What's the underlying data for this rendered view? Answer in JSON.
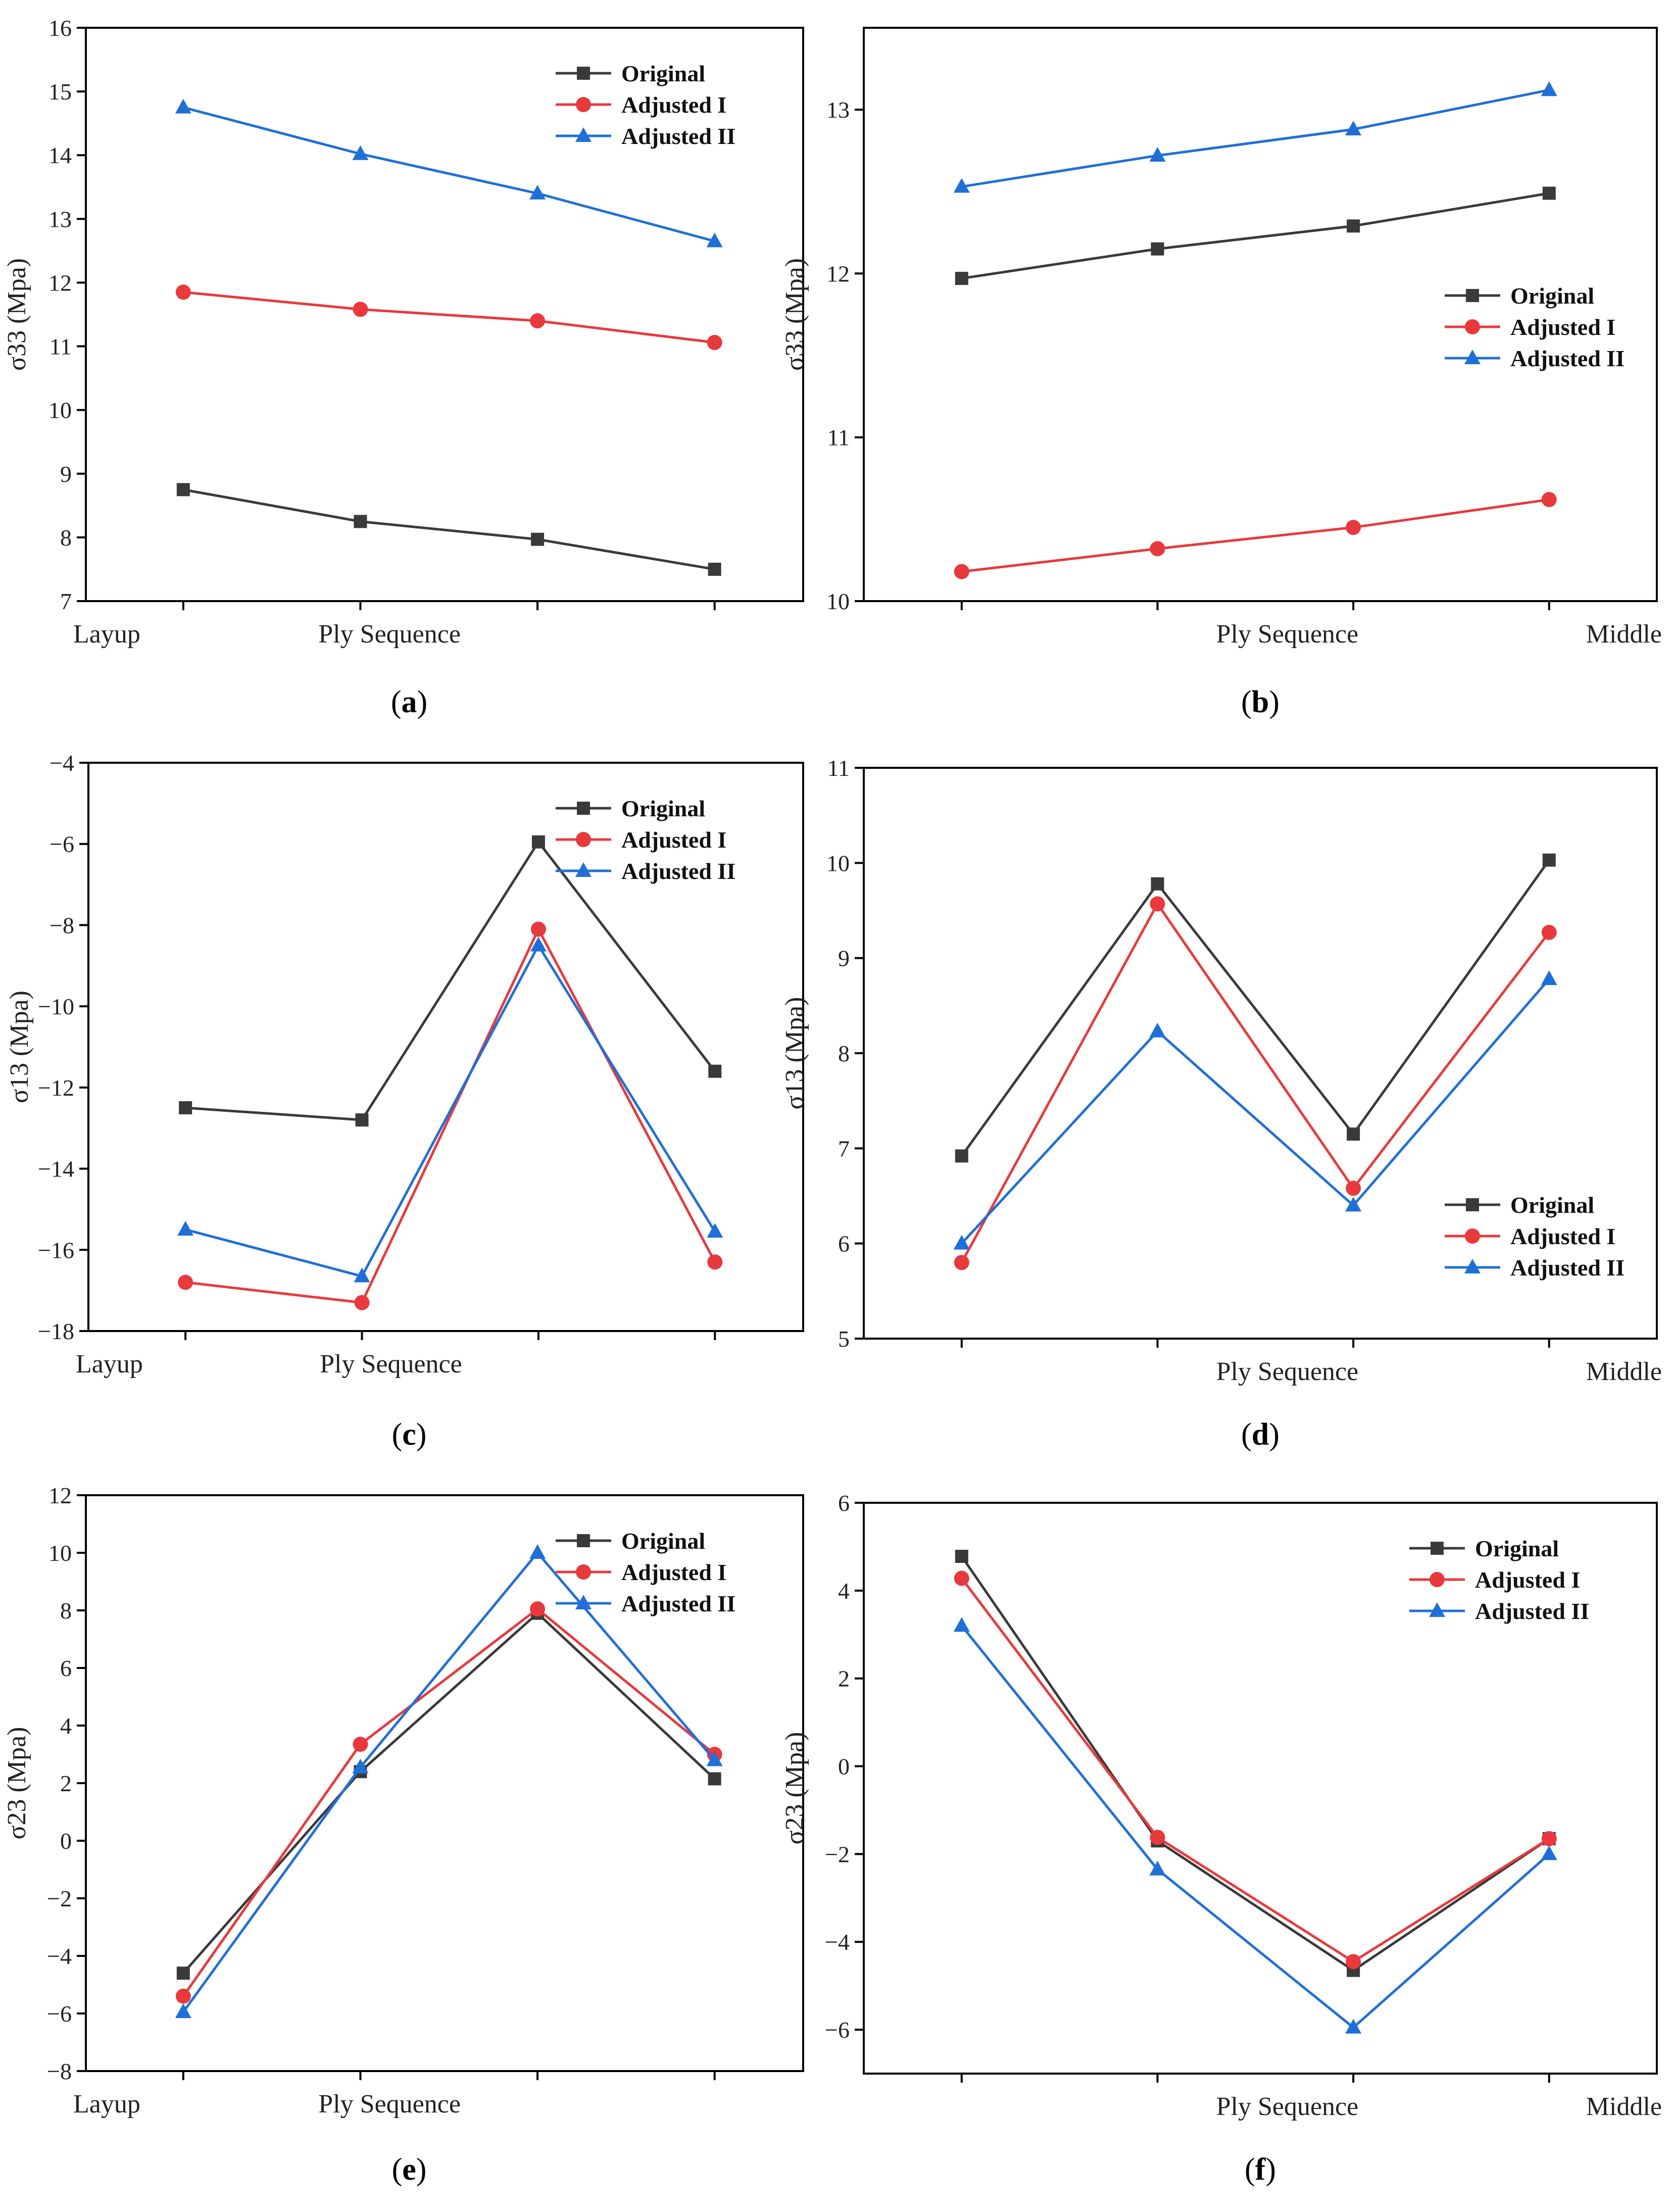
{
  "figure": {
    "colors": {
      "Original": "#3a3a3a",
      "Adjusted I": "#e8393c",
      "Adjusted II": "#1f6fd8"
    },
    "markers": {
      "Original": "square",
      "Adjusted I": "circle",
      "Adjusted II": "triangle"
    }
  },
  "chart_data": [
    {
      "id": "a",
      "type": "line",
      "caption_letter": "a",
      "title": "",
      "ylabel": "σ33 (Mpa)",
      "xlabel": "Ply Sequence",
      "x_left_label": "Layup",
      "x_right_label": "",
      "x": [
        1,
        2,
        3,
        4
      ],
      "xlim": [
        0.45,
        4.5
      ],
      "ylim": [
        7,
        16
      ],
      "yticks": [
        7,
        8,
        9,
        10,
        11,
        12,
        13,
        14,
        15,
        16
      ],
      "ytick_labels": [
        "7",
        "8",
        "9",
        "10",
        "11",
        "12",
        "13",
        "14",
        "15",
        "16"
      ],
      "legend_position": "top-right",
      "series": [
        {
          "name": "Original",
          "values": [
            8.75,
            8.25,
            7.97,
            7.5
          ]
        },
        {
          "name": "Adjusted I",
          "values": [
            11.85,
            11.58,
            11.4,
            11.06
          ]
        },
        {
          "name": "Adjusted II",
          "values": [
            14.75,
            14.02,
            13.4,
            12.65
          ]
        }
      ]
    },
    {
      "id": "b",
      "type": "line",
      "caption_letter": "b",
      "title": "",
      "ylabel": "σ33 (Mpa)",
      "xlabel": "Ply Sequence",
      "x_left_label": "",
      "x_right_label": "Middle",
      "x": [
        1,
        2,
        3,
        4
      ],
      "xlim": [
        0.5,
        4.55
      ],
      "ylim": [
        10,
        13.5
      ],
      "yticks": [
        10,
        11,
        12,
        13
      ],
      "ytick_labels": [
        "10",
        "11",
        "12",
        "13"
      ],
      "legend_position": "center-right",
      "series": [
        {
          "name": "Original",
          "values": [
            11.97,
            12.15,
            12.29,
            12.49
          ]
        },
        {
          "name": "Adjusted I",
          "values": [
            10.18,
            10.32,
            10.45,
            10.62
          ]
        },
        {
          "name": "Adjusted II",
          "values": [
            12.53,
            12.72,
            12.88,
            13.12
          ]
        }
      ]
    },
    {
      "id": "c",
      "type": "line",
      "caption_letter": "c",
      "title": "",
      "ylabel": "σ13 (Mpa)",
      "xlabel": "Ply Sequence",
      "x_left_label": "Layup",
      "x_right_label": "",
      "x": [
        1,
        2,
        3,
        4
      ],
      "xlim": [
        0.45,
        4.5
      ],
      "ylim": [
        -18,
        -4
      ],
      "yticks": [
        -18,
        -16,
        -14,
        -12,
        -10,
        -8,
        -6,
        -4
      ],
      "ytick_labels": [
        "−18",
        "−16",
        "−14",
        "−12",
        "−10",
        "−8",
        "−6",
        "−4"
      ],
      "legend_position": "top-right",
      "series": [
        {
          "name": "Original",
          "values": [
            -12.5,
            -12.8,
            -5.95,
            -11.6
          ]
        },
        {
          "name": "Adjusted I",
          "values": [
            -16.8,
            -17.3,
            -8.1,
            -16.3
          ]
        },
        {
          "name": "Adjusted II",
          "values": [
            -15.5,
            -16.65,
            -8.5,
            -15.55
          ]
        }
      ]
    },
    {
      "id": "d",
      "type": "line",
      "caption_letter": "d",
      "title": "",
      "ylabel": "σ13 (Mpa)",
      "xlabel": "Ply Sequence",
      "x_left_label": "",
      "x_right_label": "Middle",
      "x": [
        1,
        2,
        3,
        4
      ],
      "xlim": [
        0.5,
        4.55
      ],
      "ylim": [
        5,
        11
      ],
      "yticks": [
        5,
        6,
        7,
        8,
        9,
        10,
        11
      ],
      "ytick_labels": [
        "5",
        "6",
        "7",
        "8",
        "9",
        "10",
        "11"
      ],
      "legend_position": "bottom-right",
      "series": [
        {
          "name": "Original",
          "values": [
            6.92,
            9.78,
            7.15,
            10.03
          ]
        },
        {
          "name": "Adjusted I",
          "values": [
            5.8,
            9.57,
            6.58,
            9.27
          ]
        },
        {
          "name": "Adjusted II",
          "values": [
            6.0,
            8.23,
            6.4,
            8.78
          ]
        }
      ]
    },
    {
      "id": "e",
      "type": "line",
      "caption_letter": "e",
      "title": "",
      "ylabel": "σ23 (Mpa)",
      "xlabel": "Ply Sequence",
      "x_left_label": "Layup",
      "x_right_label": "",
      "x": [
        1,
        2,
        3,
        4
      ],
      "xlim": [
        0.45,
        4.5
      ],
      "ylim": [
        -8,
        12
      ],
      "yticks": [
        -8,
        -6,
        -4,
        -2,
        0,
        2,
        4,
        6,
        8,
        10,
        12
      ],
      "ytick_labels": [
        "−8",
        "−6",
        "−4",
        "−2",
        "0",
        "2",
        "4",
        "6",
        "8",
        "10",
        "12"
      ],
      "legend_position": "top-right",
      "series": [
        {
          "name": "Original",
          "values": [
            -4.6,
            2.4,
            7.9,
            2.15
          ]
        },
        {
          "name": "Adjusted I",
          "values": [
            -5.4,
            3.35,
            8.05,
            3.0
          ]
        },
        {
          "name": "Adjusted II",
          "values": [
            -5.95,
            2.55,
            10.0,
            2.8
          ]
        }
      ]
    },
    {
      "id": "f",
      "type": "line",
      "caption_letter": "f",
      "title": "",
      "ylabel": "σ23 (Mpa)",
      "xlabel": "Ply Sequence",
      "x_left_label": "",
      "x_right_label": "Middle",
      "x": [
        1,
        2,
        3,
        4
      ],
      "xlim": [
        0.5,
        4.55
      ],
      "ylim": [
        -7,
        6
      ],
      "yticks": [
        -6,
        -4,
        -2,
        0,
        2,
        4,
        6
      ],
      "ytick_labels": [
        "−6",
        "−4",
        "−2",
        "0",
        "2",
        "4",
        "6"
      ],
      "legend_position": "top-right",
      "series": [
        {
          "name": "Original",
          "values": [
            4.78,
            -1.7,
            -4.65,
            -1.65
          ]
        },
        {
          "name": "Adjusted I",
          "values": [
            4.28,
            -1.62,
            -4.45,
            -1.65
          ]
        },
        {
          "name": "Adjusted II",
          "values": [
            3.2,
            -2.35,
            -5.95,
            -2.0
          ]
        }
      ]
    }
  ]
}
